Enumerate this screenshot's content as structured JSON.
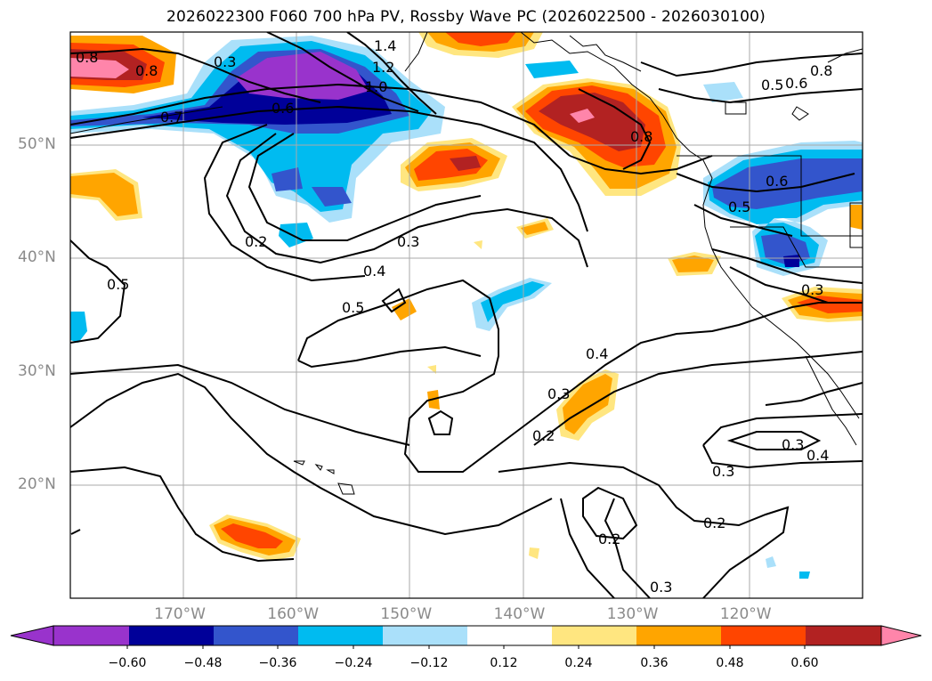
{
  "title": "2026022300 F060 700 hPa PV, Rossby Wave PC (2026022500 - 2026030100)",
  "lat_ticks": [
    {
      "value": 50,
      "label": "50°N"
    },
    {
      "value": 40,
      "label": "40°N"
    },
    {
      "value": 30,
      "label": "30°N"
    },
    {
      "value": 20,
      "label": "20°N"
    }
  ],
  "lon_ticks": [
    {
      "value": -170,
      "label": "170°W"
    },
    {
      "value": -160,
      "label": "160°W"
    },
    {
      "value": -150,
      "label": "150°W"
    },
    {
      "value": -140,
      "label": "140°W"
    },
    {
      "value": -130,
      "label": "130°W"
    },
    {
      "value": -120,
      "label": "120°W"
    }
  ],
  "map_extent": {
    "lon_min": -180,
    "lon_max": -110,
    "lat_min": 10,
    "lat_max": 60
  },
  "contour_labels": [
    "0.8",
    "0.8",
    "0.7",
    "0.6",
    "1.4",
    "1.2",
    "1.0",
    "0.8",
    "0.5",
    "0.6",
    "0.8",
    "0.6",
    "0.5",
    "0.2",
    "0.3",
    "0.4",
    "0.5",
    "0.5",
    "0.4",
    "0.3",
    "0.2",
    "0.3",
    "0.4",
    "0.3",
    "0.2",
    "0.2",
    "0.3",
    "0.3",
    "0.3"
  ],
  "colorbar": {
    "colors": [
      "#9933cc",
      "#000099",
      "#3355cc",
      "#00bbf0",
      "#aae0fa",
      "#ffffff",
      "#ffe680",
      "#ffa500",
      "#ff4500",
      "#b22222",
      "#ff85aa"
    ],
    "ticks": [
      "−0.60",
      "−0.48",
      "−0.36",
      "−0.24",
      "−0.12",
      "0.12",
      "0.24",
      "0.36",
      "0.48",
      "0.60"
    ]
  }
}
